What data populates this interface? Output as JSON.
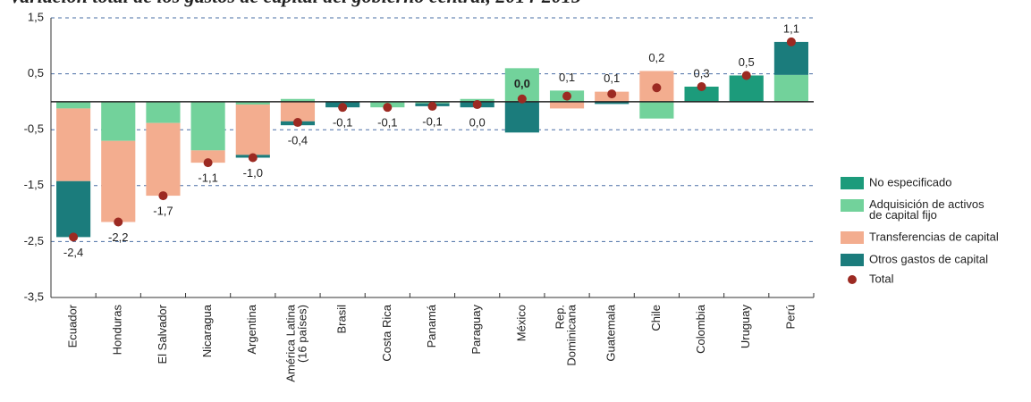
{
  "chart_data": {
    "type": "bar",
    "stacked": true,
    "title": "Variación total de los gastos de capital del gobierno central, 2014-2015",
    "categories": [
      "Ecuador",
      "Honduras",
      "El Salvador",
      "Nicaragua",
      "Argentina",
      "América Latina\n(16 países)",
      "Brasil",
      "Costa Rica",
      "Panamá",
      "Paraguay",
      "México",
      "Rep.\nDominicana",
      "Guatemala",
      "Chile",
      "Colombia",
      "Uruguay",
      "Perú"
    ],
    "series": [
      {
        "name": "No especificado",
        "color": "#1c9b7b",
        "values": [
          0,
          0,
          0,
          0,
          0,
          0,
          0,
          0,
          0,
          0,
          0,
          0,
          0,
          0,
          0.27,
          0.47,
          0
        ]
      },
      {
        "name": "Adquisición de activos\nde capital fijo",
        "color": "#72d29b",
        "values": [
          -0.12,
          -0.7,
          -0.38,
          -0.87,
          -0.05,
          0.05,
          0,
          -0.1,
          -0.03,
          0.05,
          0.6,
          0.2,
          0,
          -0.3,
          0,
          0,
          0.48
        ]
      },
      {
        "name": "Transferencias de capital",
        "color": "#f3ad8f",
        "values": [
          -1.3,
          -1.45,
          -1.3,
          -0.22,
          -0.9,
          -0.35,
          0,
          0,
          0,
          0,
          0,
          -0.12,
          0.18,
          0.55,
          0,
          0,
          0
        ]
      },
      {
        "name": "Otros gastos de capital",
        "color": "#1b7c7c",
        "values": [
          -1.0,
          0,
          0,
          0,
          -0.05,
          -0.07,
          -0.1,
          0,
          -0.05,
          -0.1,
          -0.55,
          0,
          -0.04,
          0,
          0,
          0,
          0.59
        ]
      }
    ],
    "total": {
      "name": "Total",
      "color": "#9c2a22",
      "values": [
        -2.42,
        -2.15,
        -1.68,
        -1.09,
        -1.0,
        -0.37,
        -0.1,
        -0.1,
        -0.08,
        -0.05,
        0.05,
        0.1,
        0.14,
        0.25,
        0.27,
        0.47,
        1.07
      ],
      "value_labels": [
        "-2,4",
        "-2,2",
        "-1,7",
        "-1,1",
        "-1,0",
        "-0,4",
        "-0,1",
        "-0,1",
        "-0,1",
        "0,0",
        "0,0",
        "0,1",
        "0,1",
        "0,2",
        "0,3",
        "0,5",
        "1,1"
      ]
    },
    "ylim": [
      -3.5,
      1.5
    ],
    "yticks": [
      {
        "value": -3.5,
        "label": "-3,5"
      },
      {
        "value": -2.5,
        "label": "-2,5"
      },
      {
        "value": -1.5,
        "label": "-1,5"
      },
      {
        "value": -0.5,
        "label": "-0,5"
      },
      {
        "value": 0.5,
        "label": "0,5"
      },
      {
        "value": 1.5,
        "label": "1,5"
      }
    ],
    "grid": true,
    "legend": "right"
  }
}
